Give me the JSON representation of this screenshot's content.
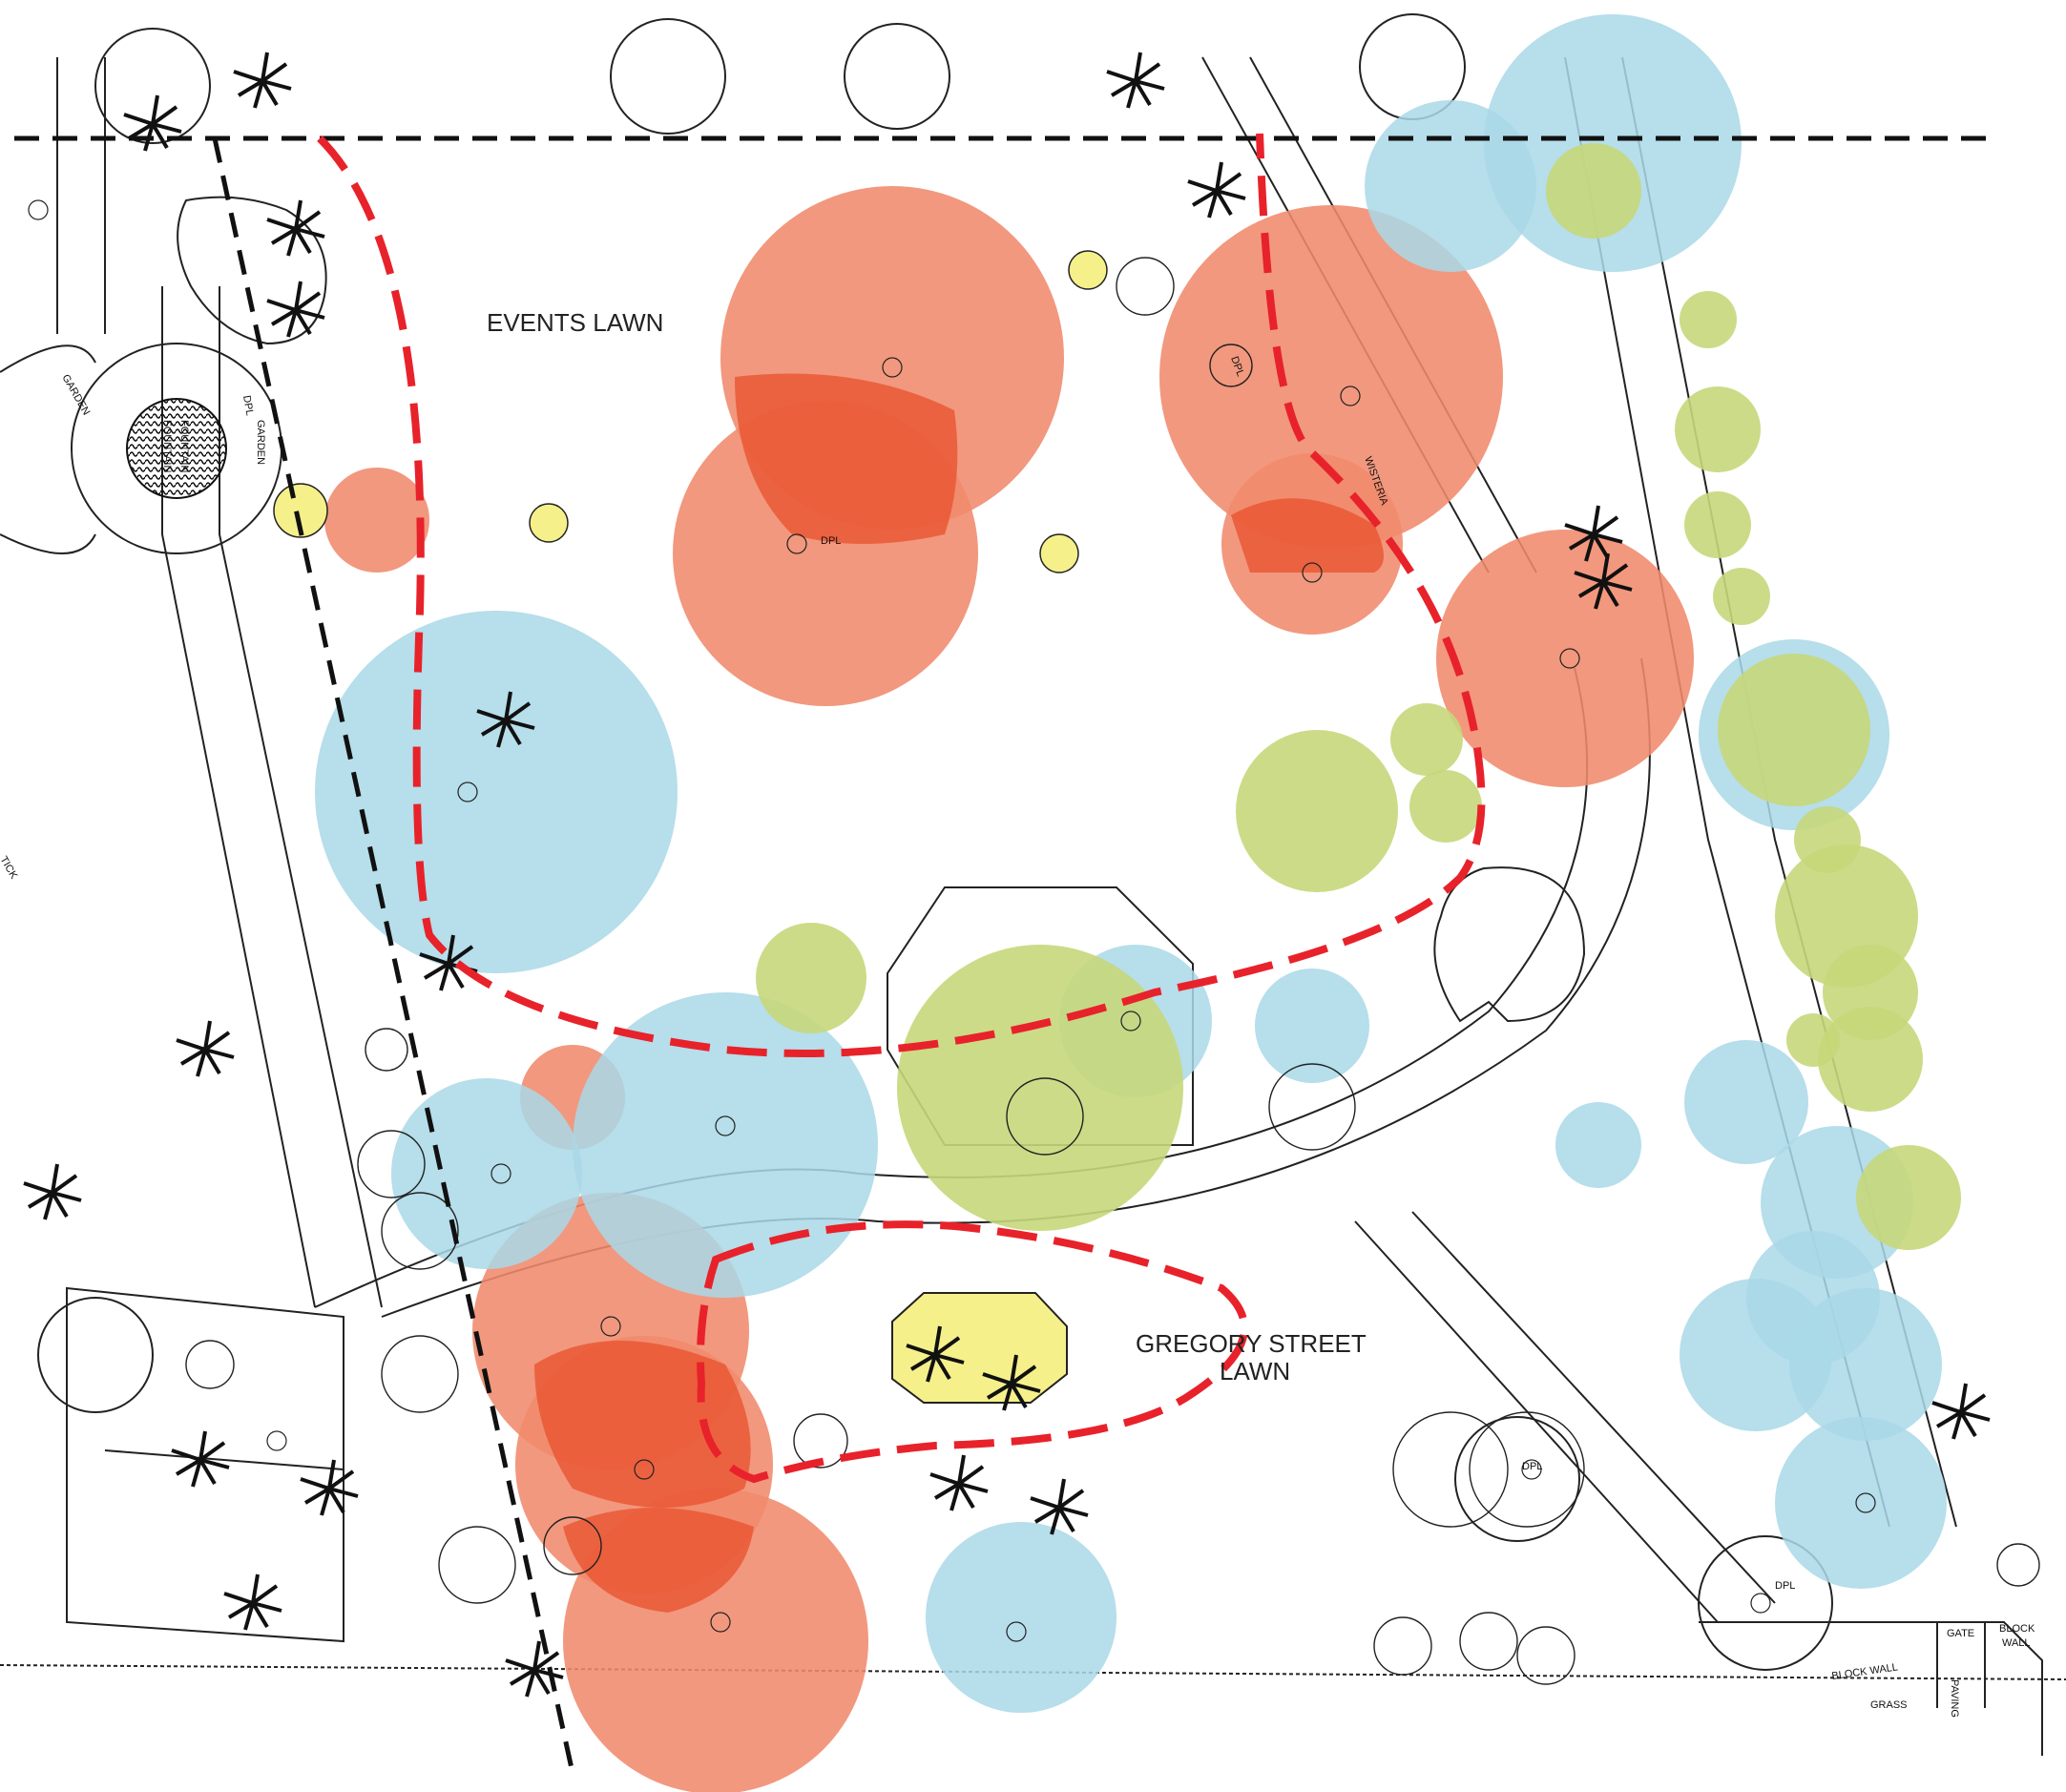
{
  "labels": {
    "events_lawn": "EVENTS LAWN",
    "gregory_line1": "GREGORY STREET",
    "gregory_line2": "LAWN",
    "fountain_line1": "FOUNTAIN",
    "fountain_line2": "FOUNTAIN",
    "garden": "GARDEN",
    "dpl": "DPL",
    "block_wall_bottom": "BLOCK WALL",
    "grass": "GRASS",
    "gate": "GATE",
    "paving": "PAVING",
    "block": "BLOCK",
    "wall": "WALL",
    "wisteria": "WISTERIA",
    "tick": "TICK"
  },
  "colors": {
    "red_zone": "#f08a6c",
    "red_zone_dark": "#e8502e",
    "blue_zone": "#a9d8e8",
    "green_zone": "#c6d77a",
    "yellow_zone": "#f5f08a",
    "boundary_red": "#e8222a",
    "boundary_black": "#111111"
  }
}
